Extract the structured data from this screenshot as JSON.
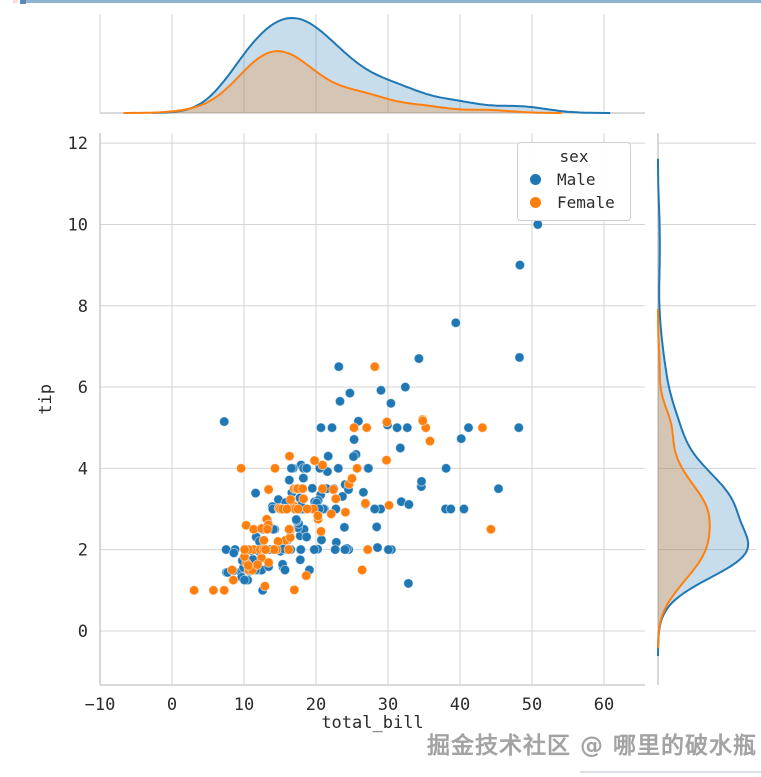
{
  "page": {
    "watermark": "掘金技术社区 @ 哪里的破水瓶"
  },
  "chart_data": {
    "type": "scatter",
    "subtype": "jointplot-with-kde-marginals",
    "title": "",
    "xlabel": "total_bill",
    "ylabel": "tip",
    "xlim": [
      -10.0,
      65.7
    ],
    "ylim": [
      -1.33,
      12.25
    ],
    "xticks": [
      -10,
      0,
      10,
      20,
      30,
      40,
      50,
      60
    ],
    "xtick_labels": [
      "−10",
      "0",
      "10",
      "20",
      "30",
      "40",
      "50",
      "60"
    ],
    "yticks": [
      0,
      2,
      4,
      6,
      8,
      10,
      12
    ],
    "ytick_labels": [
      "0",
      "2",
      "4",
      "6",
      "8",
      "10",
      "12"
    ],
    "grid": true,
    "legend": {
      "title": "sex",
      "position": "upper right",
      "entries": [
        {
          "label": "Male",
          "color": "#1f77b4"
        },
        {
          "label": "Female",
          "color": "#ff7f0e"
        }
      ]
    },
    "series": [
      {
        "name": "Male",
        "color": "#1f77b4",
        "points": [
          [
            10.34,
            1.66
          ],
          [
            21.01,
            3.5
          ],
          [
            23.68,
            3.31
          ],
          [
            25.29,
            4.71
          ],
          [
            8.77,
            2.0
          ],
          [
            26.88,
            3.12
          ],
          [
            15.04,
            1.96
          ],
          [
            14.78,
            3.23
          ],
          [
            10.27,
            1.71
          ],
          [
            15.42,
            1.57
          ],
          [
            18.43,
            3.0
          ],
          [
            21.58,
            3.92
          ],
          [
            16.29,
            3.71
          ],
          [
            20.65,
            3.35
          ],
          [
            17.92,
            4.08
          ],
          [
            39.42,
            7.58
          ],
          [
            19.82,
            3.18
          ],
          [
            17.81,
            2.34
          ],
          [
            13.37,
            2.0
          ],
          [
            12.69,
            2.0
          ],
          [
            21.7,
            4.3
          ],
          [
            9.55,
            1.45
          ],
          [
            18.35,
            2.5
          ],
          [
            17.78,
            3.27
          ],
          [
            24.06,
            3.6
          ],
          [
            16.31,
            2.0
          ],
          [
            18.69,
            2.31
          ],
          [
            31.27,
            5.0
          ],
          [
            16.04,
            2.24
          ],
          [
            17.46,
            2.54
          ],
          [
            13.94,
            3.06
          ],
          [
            9.68,
            1.32
          ],
          [
            30.4,
            5.6
          ],
          [
            18.29,
            3.0
          ],
          [
            22.23,
            5.0
          ],
          [
            32.4,
            6.0
          ],
          [
            28.55,
            2.05
          ],
          [
            18.04,
            3.0
          ],
          [
            12.54,
            2.5
          ],
          [
            9.94,
            1.56
          ],
          [
            25.56,
            4.34
          ],
          [
            19.49,
            3.51
          ],
          [
            38.01,
            3.0
          ],
          [
            11.24,
            1.76
          ],
          [
            48.27,
            6.73
          ],
          [
            20.29,
            3.21
          ],
          [
            13.81,
            2.0
          ],
          [
            11.02,
            1.98
          ],
          [
            18.29,
            3.76
          ],
          [
            17.59,
            2.64
          ],
          [
            20.08,
            3.15
          ],
          [
            20.23,
            2.01
          ],
          [
            15.01,
            2.09
          ],
          [
            12.02,
            1.97
          ],
          [
            10.51,
            1.25
          ],
          [
            17.92,
            3.08
          ],
          [
            27.2,
            4.0
          ],
          [
            22.76,
            3.0
          ],
          [
            17.29,
            2.71
          ],
          [
            19.44,
            3.0
          ],
          [
            16.66,
            3.4
          ],
          [
            32.68,
            5.0
          ],
          [
            15.98,
            2.03
          ],
          [
            13.03,
            2.0
          ],
          [
            18.28,
            4.0
          ],
          [
            24.71,
            5.85
          ],
          [
            21.16,
            3.0
          ],
          [
            28.97,
            3.0
          ],
          [
            22.49,
            3.5
          ],
          [
            40.17,
            4.73
          ],
          [
            27.28,
            4.0
          ],
          [
            12.03,
            1.5
          ],
          [
            21.01,
            3.0
          ],
          [
            12.46,
            1.5
          ],
          [
            15.36,
            1.64
          ],
          [
            20.49,
            4.06
          ],
          [
            25.21,
            4.29
          ],
          [
            18.24,
            3.76
          ],
          [
            14.0,
            3.0
          ],
          [
            38.07,
            4.0
          ],
          [
            23.95,
            2.55
          ],
          [
            29.93,
            5.07
          ],
          [
            11.69,
            2.31
          ],
          [
            14.26,
            2.5
          ],
          [
            15.95,
            2.0
          ],
          [
            8.52,
            1.48
          ],
          [
            22.82,
            2.18
          ],
          [
            19.08,
            1.5
          ],
          [
            10.33,
            2.0
          ],
          [
            16.0,
            2.0
          ],
          [
            34.3,
            6.7
          ],
          [
            41.19,
            5.0
          ],
          [
            9.78,
            1.73
          ],
          [
            7.51,
            2.0
          ],
          [
            14.07,
            2.5
          ],
          [
            13.13,
            2.0
          ],
          [
            17.26,
            2.74
          ],
          [
            24.55,
            2.0
          ],
          [
            19.77,
            2.0
          ],
          [
            48.17,
            5.0
          ],
          [
            16.49,
            2.0
          ],
          [
            21.5,
            3.5
          ],
          [
            12.66,
            2.5
          ],
          [
            13.81,
            2.0
          ],
          [
            24.52,
            3.48
          ],
          [
            20.76,
            2.24
          ],
          [
            31.71,
            4.5
          ],
          [
            50.81,
            10.0
          ],
          [
            15.81,
            3.16
          ],
          [
            7.25,
            5.15
          ],
          [
            31.85,
            3.18
          ],
          [
            16.82,
            4.0
          ],
          [
            32.9,
            3.11
          ],
          [
            17.89,
            2.0
          ],
          [
            14.48,
            2.0
          ],
          [
            34.63,
            3.55
          ],
          [
            34.65,
            3.68
          ],
          [
            23.33,
            5.65
          ],
          [
            45.35,
            3.5
          ],
          [
            23.17,
            6.5
          ],
          [
            40.55,
            3.0
          ],
          [
            20.69,
            5.0
          ],
          [
            30.46,
            2.0
          ],
          [
            23.1,
            4.0
          ],
          [
            15.69,
            1.5
          ],
          [
            28.44,
            2.56
          ],
          [
            15.48,
            2.02
          ],
          [
            16.58,
            4.0
          ],
          [
            7.56,
            1.44
          ],
          [
            10.34,
            2.0
          ],
          [
            13.51,
            2.0
          ],
          [
            18.71,
            4.0
          ],
          [
            20.53,
            4.0
          ],
          [
            26.59,
            3.41
          ],
          [
            38.73,
            3.0
          ],
          [
            24.27,
            2.03
          ],
          [
            30.06,
            2.0
          ],
          [
            25.89,
            5.16
          ],
          [
            48.33,
            9.0
          ],
          [
            28.15,
            3.0
          ],
          [
            11.59,
            1.5
          ],
          [
            7.74,
            1.44
          ],
          [
            12.16,
            2.2
          ],
          [
            8.58,
            1.92
          ],
          [
            13.42,
            1.58
          ],
          [
            20.45,
            3.0
          ],
          [
            13.28,
            2.72
          ],
          [
            24.01,
            2.0
          ],
          [
            15.69,
            3.0
          ],
          [
            11.61,
            3.39
          ],
          [
            10.77,
            1.47
          ],
          [
            15.53,
            3.0
          ],
          [
            10.07,
            1.25
          ],
          [
            12.6,
            1.0
          ],
          [
            32.83,
            1.17
          ],
          [
            29.03,
            5.92
          ],
          [
            22.67,
            2.0
          ],
          [
            17.82,
            1.75
          ]
        ]
      },
      {
        "name": "Female",
        "color": "#ff7f0e",
        "points": [
          [
            16.99,
            1.01
          ],
          [
            24.59,
            3.61
          ],
          [
            35.26,
            5.0
          ],
          [
            14.83,
            3.02
          ],
          [
            10.33,
            1.67
          ],
          [
            16.97,
            3.5
          ],
          [
            20.29,
            2.75
          ],
          [
            15.77,
            2.23
          ],
          [
            19.65,
            3.0
          ],
          [
            15.06,
            3.0
          ],
          [
            20.69,
            2.45
          ],
          [
            16.93,
            3.07
          ],
          [
            10.29,
            2.6
          ],
          [
            34.81,
            5.2
          ],
          [
            26.41,
            1.5
          ],
          [
            16.45,
            2.47
          ],
          [
            3.07,
            1.0
          ],
          [
            17.07,
            3.0
          ],
          [
            26.86,
            3.14
          ],
          [
            25.28,
            5.0
          ],
          [
            14.73,
            2.2
          ],
          [
            10.07,
            1.83
          ],
          [
            34.83,
            5.17
          ],
          [
            5.75,
            1.0
          ],
          [
            16.32,
            4.3
          ],
          [
            22.75,
            3.25
          ],
          [
            11.35,
            2.5
          ],
          [
            15.38,
            3.0
          ],
          [
            44.3,
            2.5
          ],
          [
            22.42,
            3.48
          ],
          [
            20.92,
            4.08
          ],
          [
            14.31,
            4.0
          ],
          [
            7.25,
            1.0
          ],
          [
            25.71,
            4.0
          ],
          [
            17.31,
            3.5
          ],
          [
            10.65,
            1.5
          ],
          [
            12.43,
            1.8
          ],
          [
            24.08,
            2.92
          ],
          [
            13.42,
            1.68
          ],
          [
            12.48,
            2.52
          ],
          [
            29.8,
            4.2
          ],
          [
            14.52,
            2.0
          ],
          [
            11.38,
            2.0
          ],
          [
            20.27,
            2.83
          ],
          [
            11.17,
            1.5
          ],
          [
            12.26,
            2.0
          ],
          [
            18.26,
            3.25
          ],
          [
            8.51,
            1.25
          ],
          [
            14.15,
            2.0
          ],
          [
            13.16,
            2.75
          ],
          [
            17.47,
            3.5
          ],
          [
            27.05,
            5.0
          ],
          [
            16.43,
            2.3
          ],
          [
            8.35,
            1.5
          ],
          [
            18.64,
            1.36
          ],
          [
            11.87,
            1.63
          ],
          [
            29.85,
            5.14
          ],
          [
            25.0,
            3.75
          ],
          [
            13.39,
            2.61
          ],
          [
            16.21,
            2.0
          ],
          [
            17.51,
            3.0
          ],
          [
            10.59,
            1.61
          ],
          [
            10.63,
            2.0
          ],
          [
            9.6,
            4.0
          ],
          [
            20.9,
            3.5
          ],
          [
            18.15,
            3.5
          ],
          [
            19.81,
            4.19
          ],
          [
            43.11,
            5.0
          ],
          [
            13.0,
            2.0
          ],
          [
            12.74,
            2.01
          ],
          [
            13.0,
            2.0
          ],
          [
            16.4,
            2.5
          ],
          [
            16.47,
            3.23
          ],
          [
            12.76,
            2.23
          ],
          [
            13.27,
            2.5
          ],
          [
            28.17,
            6.5
          ],
          [
            12.9,
            1.1
          ],
          [
            30.14,
            3.09
          ],
          [
            13.42,
            3.48
          ],
          [
            15.98,
            3.0
          ],
          [
            16.27,
            2.5
          ],
          [
            10.09,
            2.0
          ],
          [
            22.12,
            2.88
          ],
          [
            35.83,
            4.67
          ],
          [
            27.18,
            2.0
          ],
          [
            18.78,
            3.0
          ]
        ]
      }
    ]
  }
}
